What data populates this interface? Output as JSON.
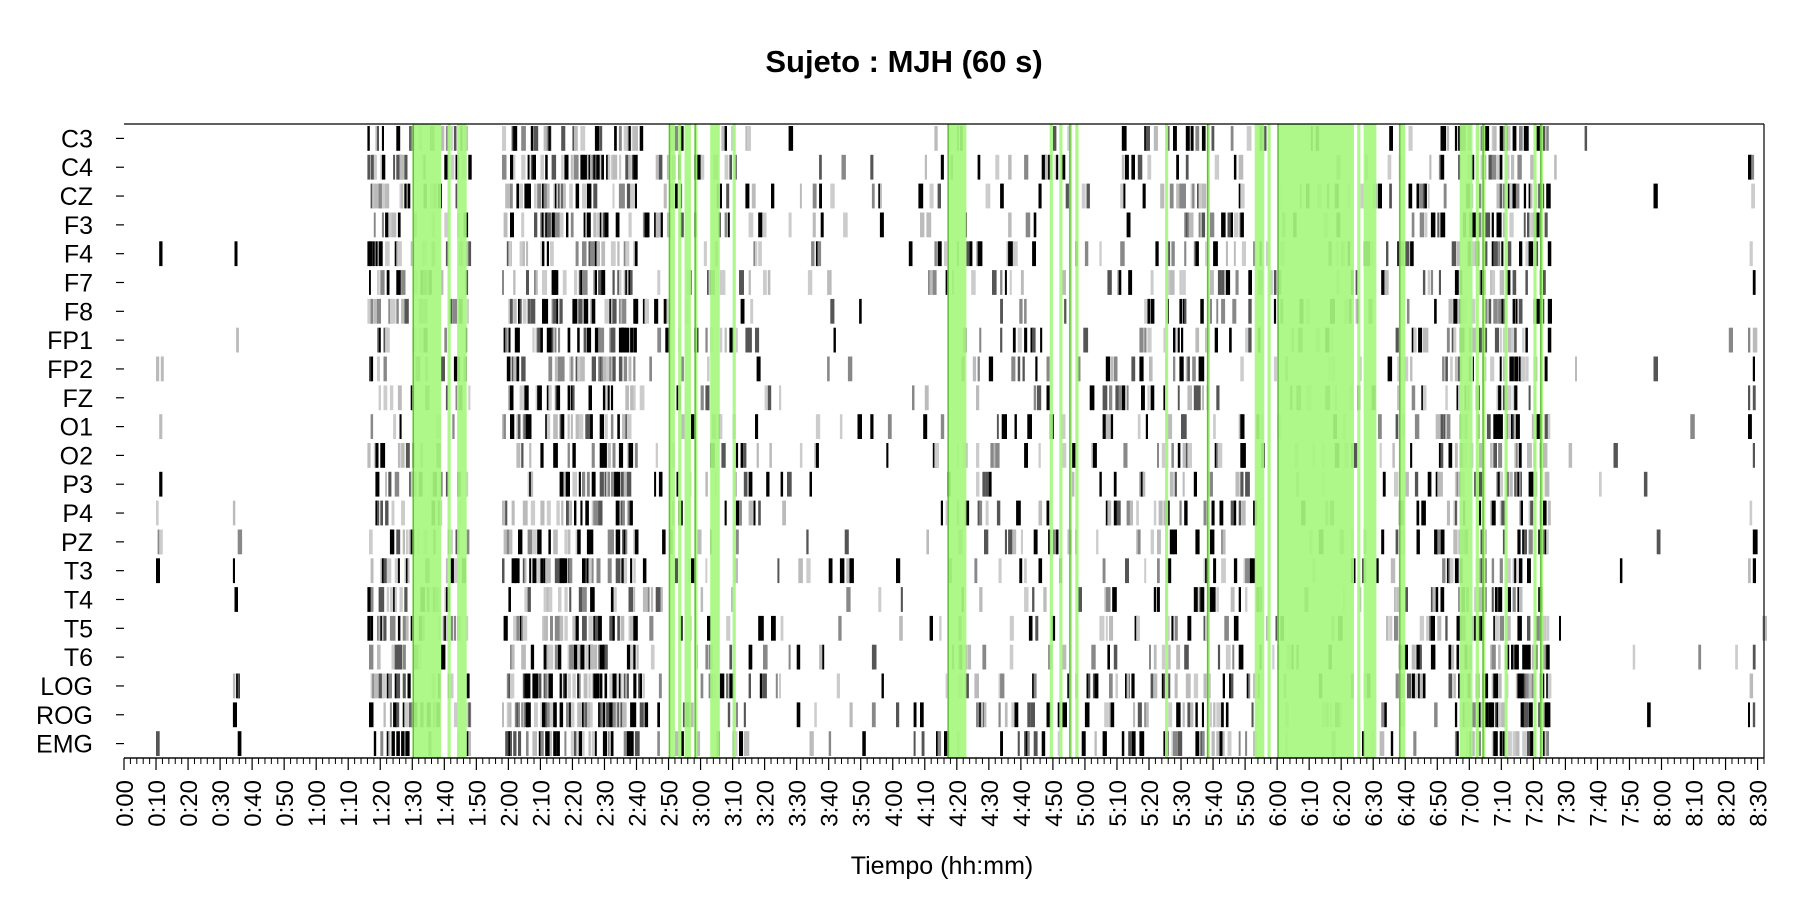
{
  "chart_data": {
    "type": "heatmap",
    "title": "Sujeto : MJH  (60 s)",
    "xlabel": "Tiempo (hh:mm)",
    "ylabel": "",
    "x_unit": "minutes",
    "xlim": [
      0,
      512
    ],
    "channels": [
      "C3",
      "C4",
      "CZ",
      "F3",
      "F4",
      "F7",
      "F8",
      "FP1",
      "FP2",
      "FZ",
      "O1",
      "O2",
      "P3",
      "P4",
      "PZ",
      "T3",
      "T4",
      "T5",
      "T6",
      "LOG",
      "ROG",
      "EMG"
    ],
    "x_tick_labels": [
      "0:00",
      "0:10",
      "0:20",
      "0:30",
      "0:40",
      "0:50",
      "1:00",
      "1:10",
      "1:20",
      "1:30",
      "1:40",
      "1:50",
      "2:00",
      "2:10",
      "2:20",
      "2:30",
      "2:40",
      "2:50",
      "3:00",
      "3:10",
      "3:20",
      "3:30",
      "3:40",
      "3:50",
      "4:00",
      "4:10",
      "4:20",
      "4:30",
      "4:40",
      "4:50",
      "5:00",
      "5:10",
      "5:20",
      "5:30",
      "5:40",
      "5:50",
      "6:00",
      "6:10",
      "6:20",
      "6:30",
      "6:40",
      "6:50",
      "7:00",
      "7:10",
      "7:20",
      "7:30",
      "7:40",
      "7:50",
      "8:00",
      "8:10",
      "8:20",
      "8:30"
    ],
    "green_intervals": [
      [
        90,
        99
      ],
      [
        101,
        102
      ],
      [
        104,
        107
      ],
      [
        170,
        172
      ],
      [
        173,
        174
      ],
      [
        175,
        177
      ],
      [
        178,
        179
      ],
      [
        183,
        186
      ],
      [
        190,
        191
      ],
      [
        257,
        263
      ],
      [
        289,
        290
      ],
      [
        292,
        293
      ],
      [
        295,
        296
      ],
      [
        297,
        298
      ],
      [
        325,
        326
      ],
      [
        338,
        339
      ],
      [
        353,
        356
      ],
      [
        357,
        358
      ],
      [
        360,
        384
      ],
      [
        385,
        386
      ],
      [
        387,
        391
      ],
      [
        398,
        400
      ],
      [
        417,
        421
      ],
      [
        422,
        423
      ],
      [
        424,
        425
      ],
      [
        431,
        432
      ],
      [
        440,
        441
      ],
      [
        442,
        443
      ]
    ],
    "activity_clusters": [
      {
        "range": [
          10,
          12
        ],
        "density": 0.25
      },
      {
        "range": [
          34,
          36
        ],
        "density": 0.35
      },
      {
        "range": [
          76,
          90
        ],
        "density": 0.55
      },
      {
        "range": [
          90,
          108
        ],
        "density": 0.3
      },
      {
        "range": [
          118,
          160
        ],
        "density": 0.6
      },
      {
        "range": [
          160,
          200
        ],
        "density": 0.2
      },
      {
        "range": [
          200,
          250
        ],
        "density": 0.06
      },
      {
        "range": [
          250,
          280
        ],
        "density": 0.18
      },
      {
        "range": [
          280,
          325
        ],
        "density": 0.2
      },
      {
        "range": [
          325,
          338
        ],
        "density": 0.45
      },
      {
        "range": [
          338,
          353
        ],
        "density": 0.3
      },
      {
        "range": [
          353,
          392
        ],
        "density": 0.15
      },
      {
        "range": [
          392,
          415
        ],
        "density": 0.25
      },
      {
        "range": [
          415,
          445
        ],
        "density": 0.6
      },
      {
        "range": [
          445,
          512
        ],
        "density": 0.02
      },
      {
        "range": [
          507,
          509
        ],
        "density": 0.4
      }
    ],
    "grey_levels": [
      "#000000",
      "#000000",
      "#555555",
      "#888888",
      "#bbbbbb",
      "#cccccc"
    ],
    "green_color": "#a6f77f",
    "green_line_color": "#2e8b00"
  }
}
